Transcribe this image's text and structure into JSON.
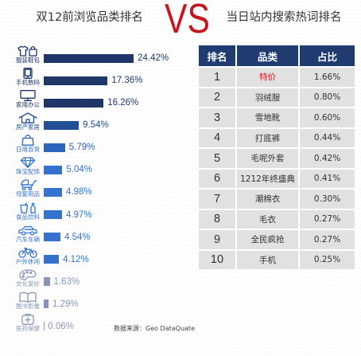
{
  "vs_label": "VS",
  "chart_data": {
    "type": "bar",
    "orientation": "horizontal",
    "title": "双12前浏览品类排名",
    "categories": [
      "服装鞋包",
      "手机数码",
      "家用办公",
      "房产家居",
      "日用百货",
      "珠宝配饰",
      "母婴用品",
      "食品饮料",
      "汽车车辆",
      "户外休闲",
      "文化爱好",
      "图书影像",
      "医药保健"
    ],
    "values": [
      24.42,
      17.36,
      16.26,
      9.54,
      5.79,
      5.04,
      4.98,
      4.97,
      4.54,
      4.12,
      1.63,
      1.29,
      0.06
    ],
    "value_unit": "%",
    "category_icons": [
      "clothing-bag-icon",
      "phone-icon",
      "computer-icon",
      "house-icon",
      "shopping-bag-icon",
      "diamond-ring-icon",
      "stroller-icon",
      "food-drink-icon",
      "car-icon",
      "bicycle-icon",
      "palette-icon",
      "book-icon",
      "medicine-icon"
    ],
    "bar_colors": [
      "#1e3768",
      "#1e3768",
      "#1e3768",
      "#224f96",
      "#2b64ba",
      "#3373cf",
      "#3373cf",
      "#3373cf",
      "#3373cf",
      "#3373cf",
      "#8796b8",
      "#8796b8",
      "#8796b8"
    ],
    "grid": false
  },
  "source": "数据来源：Geo DataQuate",
  "table": {
    "title": "当日站内搜索热词排名",
    "headers": [
      "排名",
      "品类",
      "占比"
    ],
    "rows": [
      {
        "rank": "1",
        "item": "特价",
        "share": "1.66%",
        "highlight": true
      },
      {
        "rank": "2",
        "item": "羽绒服",
        "share": "0.80%"
      },
      {
        "rank": "3",
        "item": "雪地靴",
        "share": "0.60%"
      },
      {
        "rank": "4",
        "item": "打底裤",
        "share": "0.44%"
      },
      {
        "rank": "5",
        "item": "毛呢外套",
        "share": "0.42%"
      },
      {
        "rank": "6",
        "item": "1212年终盛典",
        "share": "0.41%"
      },
      {
        "rank": "7",
        "item": "潮棉衣",
        "share": "0.30%"
      },
      {
        "rank": "8",
        "item": "毛衣",
        "share": "0.27%"
      },
      {
        "rank": "9",
        "item": "全民疯抢",
        "share": "0.27%"
      },
      {
        "rank": "10",
        "item": "手机",
        "share": "0.25%"
      }
    ],
    "header_bg": "#1f3b70",
    "cell_bg": "#e1e1e1",
    "highlight_color": "#e0141e"
  },
  "colors": {
    "vs": "#c5161d"
  }
}
